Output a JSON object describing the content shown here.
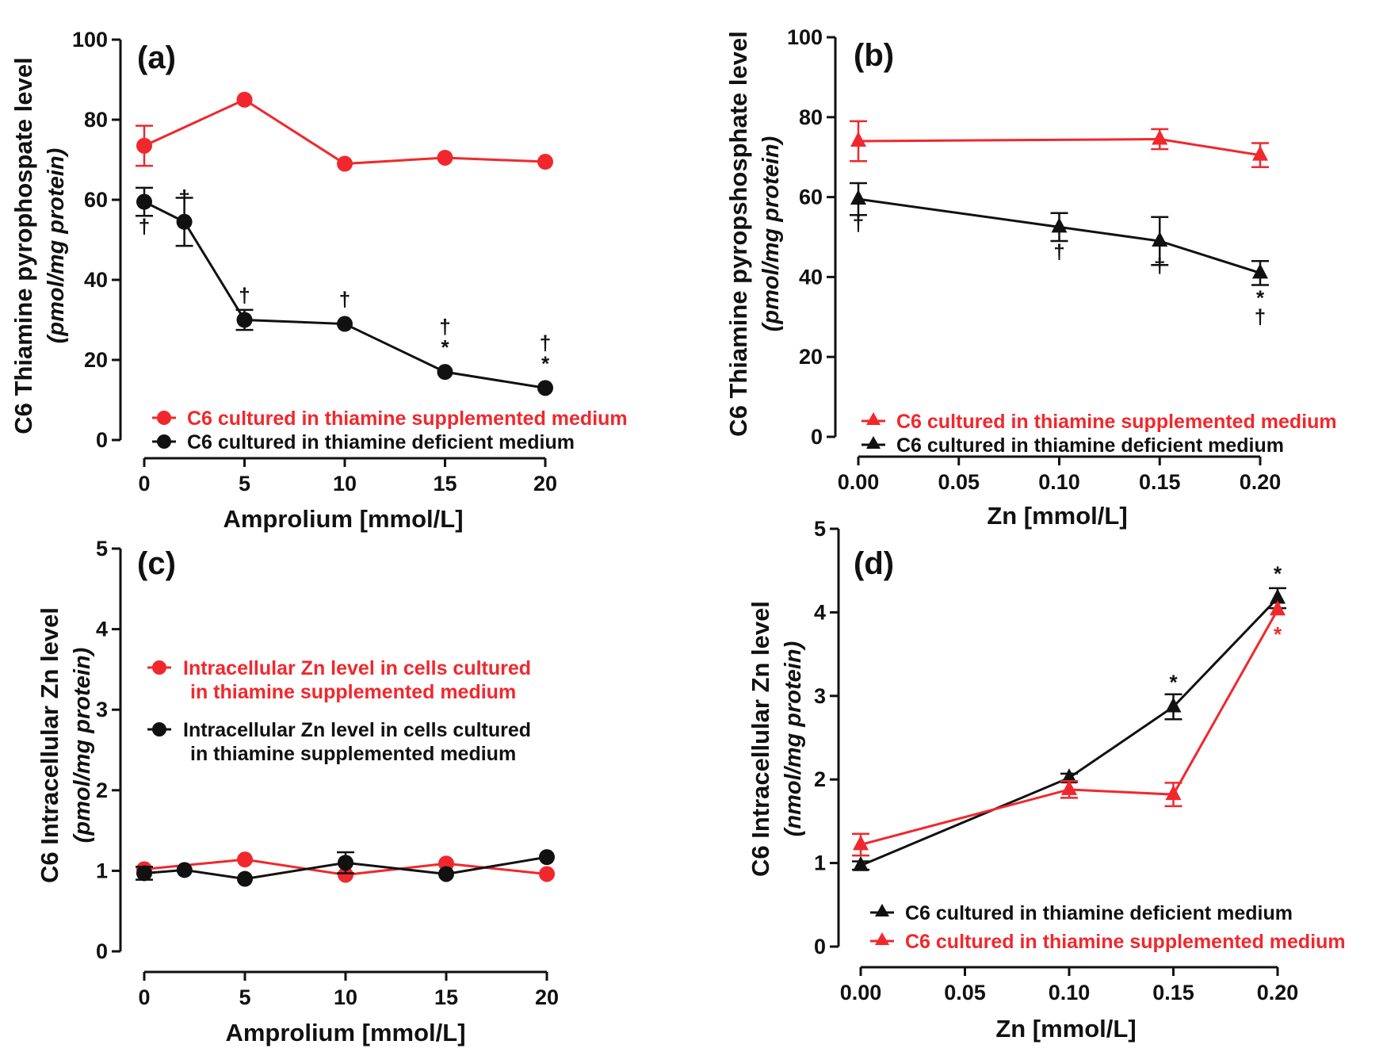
{
  "figure": {
    "colors": {
      "red": "#f0282d",
      "black": "#111111"
    }
  },
  "chart_data": [
    {
      "id": "a",
      "type": "line",
      "panel_label": "(a)",
      "xlabel": "Amprolium [mmol/L]",
      "ylabel": "C6 Thiamine pyrophospate level",
      "ylabel_sub": "(pmol/mg protein)",
      "xlim": [
        0,
        20
      ],
      "ylim": [
        0,
        100
      ],
      "xticks": [
        0,
        5,
        10,
        15,
        20
      ],
      "xtick_labels": [
        "0",
        "5",
        "10",
        "15",
        "20"
      ],
      "yticks": [
        0,
        20,
        40,
        60,
        80,
        100
      ],
      "ytick_labels": [
        "0",
        "20",
        "40",
        "60",
        "80",
        "100"
      ],
      "legend_position": "bottom",
      "series": [
        {
          "name": "C6 cultured in thiamine supplemented medium",
          "color": "#f0282d",
          "marker": "circle",
          "x": [
            0,
            5,
            10,
            15,
            20
          ],
          "y": [
            73.5,
            85,
            69,
            70.5,
            69.5
          ],
          "err": [
            5,
            0,
            0,
            0,
            0
          ]
        },
        {
          "name": "C6 cultured in thiamine deficient medium",
          "color": "#111111",
          "marker": "circle",
          "x": [
            0,
            2,
            5,
            10,
            15,
            20
          ],
          "y": [
            59.5,
            54.5,
            30,
            29,
            17,
            13
          ],
          "err": [
            3.5,
            6,
            2.5,
            0,
            0,
            0
          ]
        }
      ],
      "annotations": [
        {
          "x": 0,
          "y": 59.5,
          "side": "below",
          "color": "#111111",
          "lines": [
            "†"
          ]
        },
        {
          "x": 2,
          "y": 54.5,
          "side": "above",
          "color": "#111111",
          "lines": [
            "†"
          ]
        },
        {
          "x": 5,
          "y": 30,
          "side": "above",
          "color": "#111111",
          "lines": [
            "†"
          ]
        },
        {
          "x": 10,
          "y": 29,
          "side": "above",
          "color": "#111111",
          "lines": [
            "†"
          ]
        },
        {
          "x": 15,
          "y": 17,
          "side": "above",
          "color": "#111111",
          "lines": [
            "†",
            "*"
          ]
        },
        {
          "x": 20,
          "y": 13,
          "side": "above",
          "color": "#111111",
          "lines": [
            "†",
            "*"
          ]
        }
      ]
    },
    {
      "id": "b",
      "type": "line",
      "panel_label": "(b)",
      "xlabel": "Zn [mmol/L]",
      "ylabel": "C6 Thiamine pyropshosphate level",
      "ylabel_sub": "(pmol/mg protein)",
      "xlim": [
        0,
        0.2
      ],
      "ylim": [
        0,
        100
      ],
      "xticks": [
        0,
        0.05,
        0.1,
        0.15,
        0.2
      ],
      "xtick_labels": [
        "0.00",
        "0.05",
        "0.10",
        "0.15",
        "0.20"
      ],
      "yticks": [
        0,
        20,
        40,
        60,
        80,
        100
      ],
      "ytick_labels": [
        "0",
        "20",
        "40",
        "60",
        "80",
        "100"
      ],
      "legend_position": "bottom",
      "series": [
        {
          "name": "C6 cultured in thiamine supplemented medium",
          "color": "#f0282d",
          "marker": "triangle",
          "x": [
            0,
            0.15,
            0.2
          ],
          "y": [
            74,
            74.5,
            70.5
          ],
          "err": [
            5,
            2.5,
            3
          ]
        },
        {
          "name": "C6 cultured in thiamine deficient medium",
          "color": "#111111",
          "marker": "triangle",
          "x": [
            0,
            0.1,
            0.15,
            0.2
          ],
          "y": [
            59.5,
            52.5,
            49,
            41
          ],
          "err": [
            4,
            3.5,
            6,
            3
          ]
        }
      ],
      "annotations": [
        {
          "x": 0,
          "y": 59.5,
          "side": "below",
          "color": "#111111",
          "lines": [
            "†"
          ]
        },
        {
          "x": 0.1,
          "y": 52.5,
          "side": "below",
          "color": "#111111",
          "lines": [
            "†"
          ]
        },
        {
          "x": 0.15,
          "y": 49,
          "side": "below",
          "color": "#111111",
          "lines": [
            "†"
          ]
        },
        {
          "x": 0.2,
          "y": 41,
          "side": "below",
          "color": "#111111",
          "lines": [
            "*",
            "†"
          ]
        }
      ]
    },
    {
      "id": "c",
      "type": "line",
      "panel_label": "(c)",
      "xlabel": "Amprolium [mmol/L]",
      "ylabel": "C6 Intracellular Zn level",
      "ylabel_sub": "(pmol/mg protein)",
      "xlim": [
        0,
        20
      ],
      "ylim": [
        0,
        5
      ],
      "xticks": [
        0,
        5,
        10,
        15,
        20
      ],
      "xtick_labels": [
        "0",
        "5",
        "10",
        "15",
        "20"
      ],
      "yticks": [
        0,
        1,
        2,
        3,
        4,
        5
      ],
      "ytick_labels": [
        "0",
        "1",
        "2",
        "3",
        "4",
        "5"
      ],
      "legend_position": "middle",
      "series": [
        {
          "name": "Intracellular Zn level in cells cultured in thiamine supplemented medium",
          "color": "#f0282d",
          "marker": "circle",
          "x": [
            0,
            5,
            10,
            15,
            20
          ],
          "y": [
            1.02,
            1.14,
            0.95,
            1.09,
            0.96
          ],
          "err": [
            0,
            0,
            0,
            0,
            0
          ]
        },
        {
          "name": "Intracellular Zn level in cells cultured in thiamine supplemented medium",
          "color": "#111111",
          "marker": "circle",
          "x": [
            0,
            2,
            5,
            10,
            15,
            20
          ],
          "y": [
            0.97,
            1.01,
            0.9,
            1.1,
            0.96,
            1.17
          ],
          "err": [
            0.08,
            0,
            0,
            0.13,
            0,
            0
          ]
        }
      ],
      "legend_entries": [
        {
          "color": "#f0282d",
          "lines": [
            "Intracellular Zn level in cells cultured",
            "in thiamine supplemented medium"
          ]
        },
        {
          "color": "#111111",
          "lines": [
            "Intracellular Zn level in cells cultured",
            "in thiamine supplemented medium"
          ]
        }
      ],
      "annotations": []
    },
    {
      "id": "d",
      "type": "line",
      "panel_label": "(d)",
      "xlabel": "Zn [mmol/L]",
      "ylabel": "C6 Intracellular Zn level",
      "ylabel_sub": "(nmol/mg protein)",
      "xlim": [
        0,
        0.2
      ],
      "ylim": [
        0,
        5
      ],
      "xticks": [
        0,
        0.05,
        0.1,
        0.15,
        0.2
      ],
      "xtick_labels": [
        "0.00",
        "0.05",
        "0.10",
        "0.15",
        "0.20"
      ],
      "yticks": [
        0,
        1,
        2,
        3,
        4,
        5
      ],
      "ytick_labels": [
        "0",
        "1",
        "2",
        "3",
        "4",
        "5"
      ],
      "legend_position": "bottom",
      "series": [
        {
          "name": "C6 cultured in thiamine deficient medium",
          "color": "#111111",
          "marker": "triangle",
          "x": [
            0,
            0.1,
            0.15,
            0.2
          ],
          "y": [
            0.97,
            2.02,
            2.87,
            4.17
          ],
          "err": [
            0.05,
            0.05,
            0.15,
            0.12
          ]
        },
        {
          "name": "C6 cultured in thiamine supplemented medium",
          "color": "#f0282d",
          "marker": "triangle",
          "x": [
            0,
            0.1,
            0.15,
            0.2
          ],
          "y": [
            1.22,
            1.88,
            1.82,
            4.03
          ],
          "err": [
            0.13,
            0.1,
            0.14,
            0
          ]
        }
      ],
      "annotations": [
        {
          "x": 0.15,
          "y": 2.87,
          "side": "above",
          "color": "#111111",
          "lines": [
            "*"
          ]
        },
        {
          "x": 0.2,
          "y": 4.17,
          "side": "above",
          "color": "#111111",
          "lines": [
            "*"
          ]
        },
        {
          "x": 0.2,
          "y": 4.03,
          "side": "below",
          "color": "#f0282d",
          "lines": [
            "*"
          ]
        }
      ]
    }
  ]
}
